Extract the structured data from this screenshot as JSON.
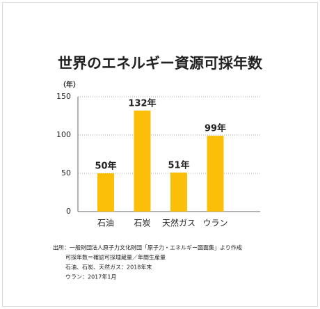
{
  "chart_data": {
    "type": "bar",
    "title": "世界のエネルギー資源可採年数",
    "y_label": "（年）",
    "categories": [
      "石油",
      "石炭",
      "天然ガス",
      "ウラン"
    ],
    "values": [
      50,
      132,
      51,
      99
    ],
    "value_labels": [
      "50年",
      "132年",
      "51年",
      "99年"
    ],
    "color": "#fbbf0a",
    "ylim": [
      0,
      150
    ],
    "yticks": [
      0,
      50,
      100,
      150
    ],
    "grid": true,
    "notes": [
      "出所：一般財団法人原子力文化財団「原子力・エネルギー図面集」より作成",
      "可採年数＝確認可採埋蔵量／年間生産量",
      "石油、石炭、天然ガス：2018年末",
      "ウラン：2017年1月"
    ]
  }
}
